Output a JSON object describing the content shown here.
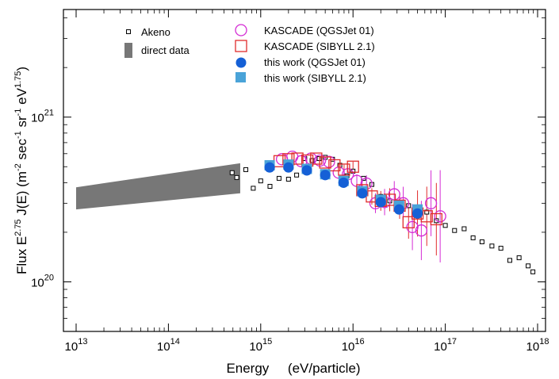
{
  "chart_data": {
    "type": "scatter",
    "title": "",
    "xlabel": "Energy     (eV/particle)",
    "ylabel": "Flux E 2.75 J(E) (m-2 sec-1 sr-1 eV 1.75)",
    "ylabel_parts": {
      "a": "Flux E",
      "a_sup": "2.75",
      "b": " J(E) (m",
      "b_sup": "-2",
      "c": " sec",
      "c_sup": "-1",
      "d": " sr",
      "d_sup": "-1",
      "e": " eV",
      "e_sup": "1.75",
      "f": ")"
    },
    "x_scale": "log",
    "y_scale": "log",
    "xlim": [
      10000000000000.0,
      1e+18
    ],
    "ylim": [
      5e+19,
      4.5e+21
    ],
    "x_ticks": [
      {
        "base": "10",
        "exp": "13",
        "value": 10000000000000.0
      },
      {
        "base": "10",
        "exp": "14",
        "value": 100000000000000.0
      },
      {
        "base": "10",
        "exp": "15",
        "value": 1000000000000000.0
      },
      {
        "base": "10",
        "exp": "16",
        "value": 1e+16
      },
      {
        "base": "10",
        "exp": "17",
        "value": 1e+17
      },
      {
        "base": "10",
        "exp": "18",
        "value": 1e+18
      }
    ],
    "y_ticks": [
      {
        "base": "10",
        "exp": "20",
        "value": 1e+20
      },
      {
        "base": "10",
        "exp": "21",
        "value": 1e+21
      }
    ],
    "grid": false,
    "legend_position": "top-left",
    "series": [
      {
        "name": "Akeno",
        "marker": "small-square-open",
        "color": "#000000",
        "points": [
          [
            490000000000000.0,
            4.6e+20
          ],
          [
            550000000000000.0,
            4.3e+20
          ],
          [
            690000000000000.0,
            4.8e+20
          ],
          [
            830000000000000.0,
            3.7e+20
          ],
          [
            1000000000000000.0,
            4.1e+20
          ],
          [
            1260000000000000.0,
            3.8e+20
          ],
          [
            1580000000000000.0,
            4.25e+20
          ],
          [
            2000000000000000.0,
            4.2e+20
          ],
          [
            2450000000000000.0,
            4.45e+20
          ],
          [
            3000000000000000.0,
            5.6e+20
          ],
          [
            3600000000000000.0,
            5.45e+20
          ],
          [
            4300000000000000.0,
            5.6e+20
          ],
          [
            5000000000000000.0,
            5.7e+20
          ],
          [
            6000000000000000.0,
            5.55e+20
          ],
          [
            7200000000000000.0,
            5.1e+20
          ],
          [
            8600000000000000.0,
            4.4e+20
          ],
          [
            1e+16,
            4.7e+20
          ],
          [
            1.3e+16,
            4.25e+20
          ],
          [
            1.6e+16,
            3.9e+20
          ],
          [
            2e+16,
            3.3e+20
          ],
          [
            2.5e+16,
            3.1e+20
          ],
          [
            3.2e+16,
            2.9e+20
          ],
          [
            4e+16,
            2.9e+20
          ],
          [
            5e+16,
            2.85e+20
          ],
          [
            6.3e+16,
            2.65e+20
          ],
          [
            8e+16,
            2.35e+20
          ],
          [
            1e+17,
            2.2e+20
          ],
          [
            1.26e+17,
            2.05e+20
          ],
          [
            1.6e+17,
            2.1e+20
          ],
          [
            2e+17,
            1.85e+20
          ],
          [
            2.5e+17,
            1.75e+20
          ],
          [
            3.2e+17,
            1.65e+20
          ],
          [
            4e+17,
            1.6e+20
          ],
          [
            5e+17,
            1.35e+20
          ],
          [
            6.3e+17,
            1.4e+20
          ],
          [
            7.9e+17,
            1.25e+20
          ],
          [
            8.9e+17,
            1.15e+20
          ]
        ]
      },
      {
        "name": "direct data",
        "marker": "band",
        "color": "#777777",
        "band": {
          "x": [
            10000000000000.0,
            600000000000000.0
          ],
          "lower": [
            2.75e+20,
            3.45e+20
          ],
          "upper": [
            3.75e+20,
            5.25e+20
          ]
        }
      },
      {
        "name": "KASCADE (QGSJet 01)",
        "marker": "circle-open",
        "color": "#d42bd4",
        "points": [
          [
            1700000000000000.0,
            5.55e+20,
            0.0
          ],
          [
            2200000000000000.0,
            5.75e+20,
            0.0
          ],
          [
            2750000000000000.0,
            5.4e+20,
            0.0
          ],
          [
            3500000000000000.0,
            5.6e+20,
            0.0
          ],
          [
            4400000000000000.0,
            5.45e+20,
            0.0
          ],
          [
            5500000000000000.0,
            5.35e+20,
            0.0
          ],
          [
            7000000000000000.0,
            4.6e+20,
            0.0
          ],
          [
            8800000000000000.0,
            4.5e+20,
            0.04
          ],
          [
            1.1e+16,
            4.1e+20,
            0.04
          ],
          [
            1.4e+16,
            3.95e+20,
            0.05
          ],
          [
            1.75e+16,
            3e+20,
            0.06
          ],
          [
            2.2e+16,
            3.05e+20,
            0.08
          ],
          [
            2.8e+16,
            3.4e+20,
            0.08
          ],
          [
            3.5e+16,
            3e+20,
            0.1
          ],
          [
            4.4e+16,
            2.15e+20,
            0.14
          ],
          [
            5.5e+16,
            2.05e+20,
            0.18
          ],
          [
            7e+16,
            3e+20,
            0.2
          ],
          [
            8.8e+16,
            2.5e+20,
            0.28
          ]
        ]
      },
      {
        "name": "KASCADE (SIBYLL 2.1)",
        "marker": "square-open",
        "color": "#e02c2c",
        "points": [
          [
            1600000000000000.0,
            5.4e+20,
            0.0
          ],
          [
            2000000000000000.0,
            5.55e+20,
            0.0
          ],
          [
            2500000000000000.0,
            5.6e+20,
            0.0
          ],
          [
            3200000000000000.0,
            5.45e+20,
            0.0
          ],
          [
            4000000000000000.0,
            5.6e+20,
            0.0
          ],
          [
            5000000000000000.0,
            5.3e+20,
            0.0
          ],
          [
            6300000000000000.0,
            5.1e+20,
            0.0
          ],
          [
            8000000000000000.0,
            4.8e+20,
            0.03
          ],
          [
            1e+16,
            5e+20,
            0.03
          ],
          [
            1.26e+16,
            3.6e+20,
            0.04
          ],
          [
            1.6e+16,
            3.3e+20,
            0.05
          ],
          [
            2e+16,
            3.1e+20,
            0.06
          ],
          [
            2.5e+16,
            3.15e+20,
            0.07
          ],
          [
            3.2e+16,
            2.9e+20,
            0.08
          ],
          [
            4e+16,
            2.3e+20,
            0.1
          ],
          [
            5e+16,
            2.6e+20,
            0.14
          ],
          [
            6.3e+16,
            2.5e+20,
            0.18
          ],
          [
            8e+16,
            2.4e+20,
            0.22
          ]
        ]
      },
      {
        "name": "this work (QGSJet 01)",
        "marker": "circle-filled",
        "color": "#1560d6",
        "points": [
          [
            1250000000000000.0,
            4.95e+20
          ],
          [
            2000000000000000.0,
            4.95e+20
          ],
          [
            3160000000000000.0,
            4.75e+20
          ],
          [
            5000000000000000.0,
            4.45e+20
          ],
          [
            7900000000000000.0,
            4e+20
          ],
          [
            1.26e+16,
            3.45e+20
          ],
          [
            2e+16,
            3.05e+20
          ],
          [
            3.16e+16,
            2.75e+20
          ],
          [
            5e+16,
            2.6e+20
          ]
        ]
      },
      {
        "name": "this work (SIBYLL 2.1)",
        "marker": "square-filled",
        "color": "#4aa3d8",
        "points": [
          [
            1250000000000000.0,
            5.1e+20
          ],
          [
            2000000000000000.0,
            5.15e+20
          ],
          [
            3160000000000000.0,
            4.85e+20
          ],
          [
            5000000000000000.0,
            4.5e+20
          ],
          [
            7900000000000000.0,
            4.1e+20
          ],
          [
            1.26e+16,
            3.55e+20
          ],
          [
            2e+16,
            3.15e+20
          ],
          [
            3.16e+16,
            2.9e+20
          ],
          [
            5e+16,
            2.75e+20
          ]
        ]
      }
    ]
  }
}
